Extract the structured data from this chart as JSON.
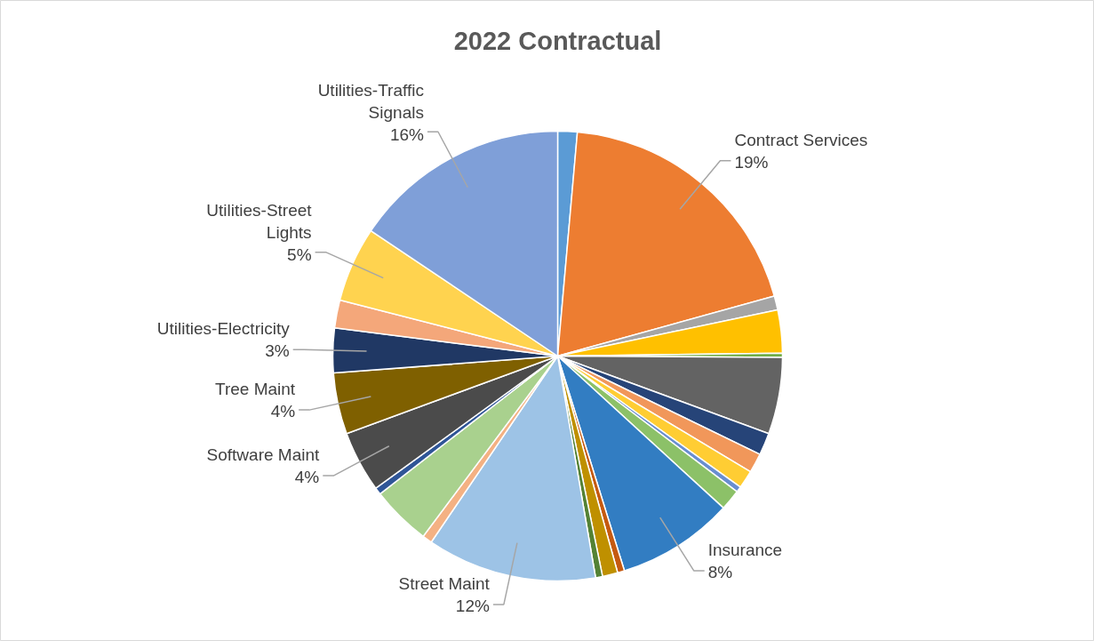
{
  "chart_data": {
    "type": "pie",
    "title": "2022 Contractual",
    "categories": [
      null,
      "Contract Services",
      null,
      null,
      null,
      null,
      null,
      null,
      null,
      null,
      null,
      "Insurance",
      null,
      null,
      null,
      "Street Maint",
      null,
      null,
      null,
      "Software Maint",
      "Tree Maint",
      "Utilities-Electricity",
      null,
      "Utilities-Street Lights",
      "Utilities-Traffic Signals"
    ],
    "values": [
      1.4,
      19.3,
      1.0,
      3.1,
      0.3,
      5.5,
      1.6,
      1.4,
      1.3,
      0.4,
      1.5,
      8.4,
      0.5,
      1.1,
      0.5,
      12.2,
      0.7,
      4.3,
      0.5,
      4.4,
      4.4,
      3.2,
      2.0,
      5.4,
      15.6
    ],
    "colors": [
      "#5b9bd5",
      "#ed7d31",
      "#a5a5a5",
      "#ffc000",
      "#70ad47",
      "#636363",
      "#264478",
      "#f1975a",
      "#ffcd33",
      "#698ed0",
      "#8cc168",
      "#327dc2",
      "#c55a11",
      "#bf9000",
      "#548235",
      "#9dc3e6",
      "#f4b183",
      "#a9d18e",
      "#2f5597",
      "#4b4b4b",
      "#7f6000",
      "#203864",
      "#f4a77a",
      "#ffd34f",
      "#7f9fd8"
    ],
    "value_labels": [
      null,
      "19%",
      null,
      null,
      null,
      null,
      null,
      null,
      null,
      null,
      null,
      "8%",
      null,
      null,
      null,
      "12%",
      null,
      null,
      null,
      "4%",
      "4%",
      "3%",
      null,
      "5%",
      "16%"
    ]
  }
}
